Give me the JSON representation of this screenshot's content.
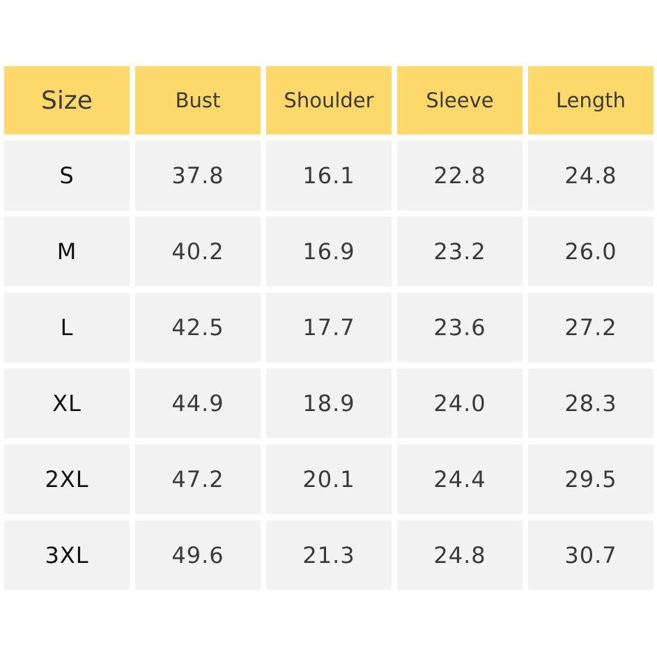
{
  "table": {
    "header": [
      "Size",
      "Bust",
      "Shoulder",
      "Sleeve",
      "Length"
    ],
    "rows": [
      [
        "S",
        "37.8",
        "16.1",
        "22.8",
        "24.8"
      ],
      [
        "M",
        "40.2",
        "16.9",
        "23.2",
        "26.0"
      ],
      [
        "L",
        "42.5",
        "17.7",
        "23.6",
        "27.2"
      ],
      [
        "XL",
        "44.9",
        "18.9",
        "24.0",
        "28.3"
      ],
      [
        "2XL",
        "47.2",
        "20.1",
        "24.4",
        "29.5"
      ],
      [
        "3XL",
        "49.6",
        "21.3",
        "24.8",
        "30.7"
      ]
    ]
  }
}
